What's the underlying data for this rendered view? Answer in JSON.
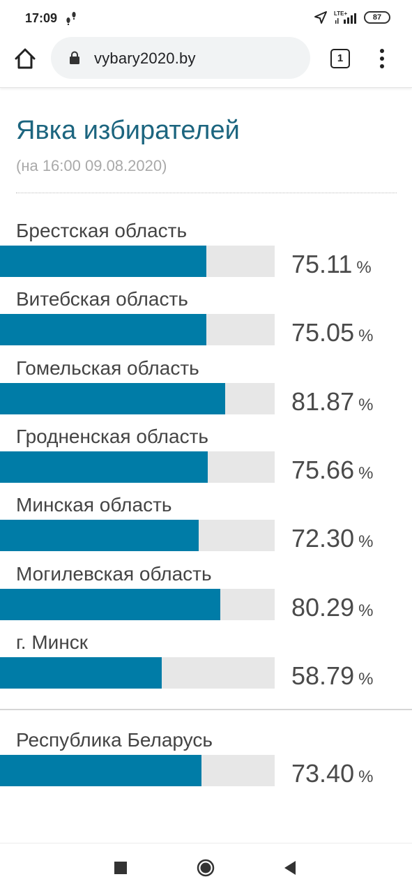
{
  "status_bar": {
    "time": "17:09",
    "network": "LTE+",
    "battery": "87"
  },
  "browser": {
    "url": "vybary2020.by",
    "tab_count": "1"
  },
  "page": {
    "title": "Явка избирателей",
    "subtitle": "(на 16:00 09.08.2020)",
    "unit": "%",
    "bar_color": "#007ca7",
    "track_color": "#e7e7e7",
    "title_color": "#1c657f"
  },
  "regions": [
    {
      "name": "Брестская область",
      "value": "75.11",
      "percent": 75.11
    },
    {
      "name": "Витебская область",
      "value": "75.05",
      "percent": 75.05
    },
    {
      "name": "Гомельская область",
      "value": "81.87",
      "percent": 81.87
    },
    {
      "name": "Гродненская область",
      "value": "75.66",
      "percent": 75.66
    },
    {
      "name": "Минская область",
      "value": "72.30",
      "percent": 72.3
    },
    {
      "name": "Могилевская область",
      "value": "80.29",
      "percent": 80.29
    },
    {
      "name": "г. Минск",
      "value": "58.79",
      "percent": 58.79
    }
  ],
  "total": {
    "name": "Республика Беларусь",
    "value": "73.40",
    "percent": 73.4
  }
}
